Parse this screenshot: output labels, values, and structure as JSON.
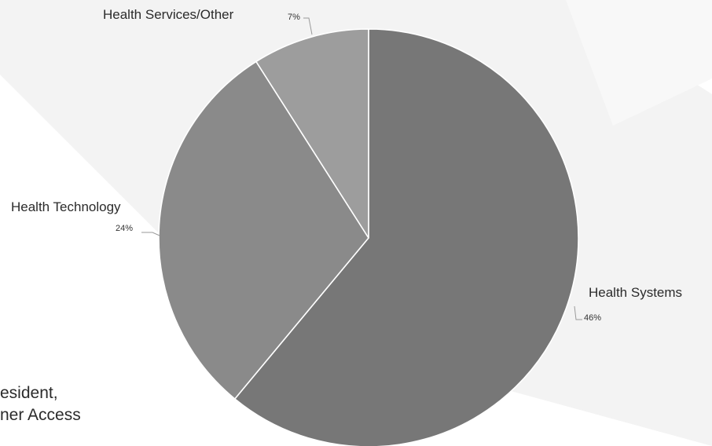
{
  "chart_data": {
    "type": "pie",
    "title": "",
    "slices": [
      {
        "label": "Health Systems",
        "pct_label": "46%",
        "share": 0.61,
        "color": "#777777"
      },
      {
        "label": "Health Technology",
        "pct_label": "24%",
        "share": 0.3,
        "color": "#8a8a8a"
      },
      {
        "label": "Health Services/Other",
        "pct_label": "7%",
        "share": 0.09,
        "color": "#9d9d9d"
      }
    ]
  },
  "background_text": {
    "line1": "esident,",
    "line2": "ner Access"
  },
  "colors": {
    "background": "#ffffff",
    "decoration": "#f0f0f0",
    "separator": "#ffffff"
  }
}
